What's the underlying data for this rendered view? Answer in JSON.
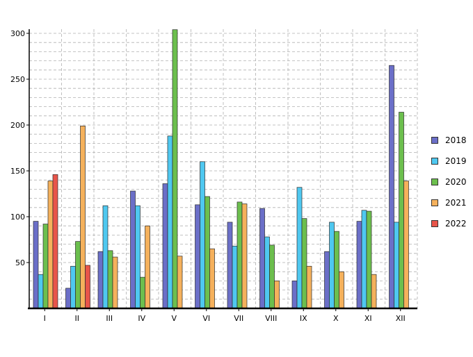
{
  "chart_data": {
    "type": "bar",
    "title": "",
    "xlabel": "",
    "ylabel": "",
    "categories": [
      "I",
      "II",
      "III",
      "IV",
      "V",
      "VI",
      "VII",
      "VIII",
      "IX",
      "X",
      "XI",
      "XII"
    ],
    "ylim": [
      0,
      300
    ],
    "yticks": [
      50,
      100,
      150,
      200,
      250,
      300
    ],
    "grid": true,
    "legend_position": "right",
    "series": [
      {
        "name": "2018",
        "color": "#6b6fc8",
        "values": [
          95,
          22,
          62,
          128,
          136,
          113,
          94,
          109,
          30,
          62,
          95,
          265
        ]
      },
      {
        "name": "2019",
        "color": "#4fc8f0",
        "values": [
          37,
          46,
          112,
          112,
          188,
          160,
          68,
          78,
          132,
          94,
          107,
          94
        ]
      },
      {
        "name": "2020",
        "color": "#6cbf4e",
        "values": [
          92,
          73,
          63,
          34,
          304,
          122,
          116,
          69,
          98,
          84,
          106,
          214
        ]
      },
      {
        "name": "2021",
        "color": "#f5b15c",
        "values": [
          139,
          199,
          56,
          90,
          57,
          65,
          114,
          30,
          46,
          40,
          37,
          139
        ]
      },
      {
        "name": "2022",
        "color": "#e8554a",
        "values": [
          146,
          47,
          0,
          0,
          0,
          0,
          0,
          0,
          0,
          0,
          0,
          0
        ]
      }
    ]
  }
}
